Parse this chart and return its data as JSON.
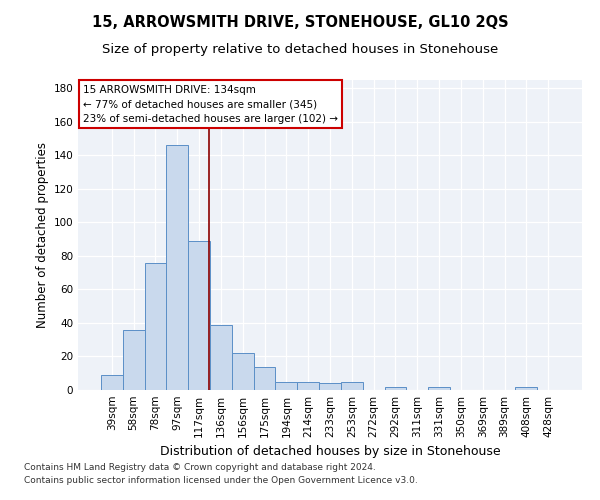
{
  "title1": "15, ARROWSMITH DRIVE, STONEHOUSE, GL10 2QS",
  "title2": "Size of property relative to detached houses in Stonehouse",
  "xlabel": "Distribution of detached houses by size in Stonehouse",
  "ylabel": "Number of detached properties",
  "categories": [
    "39sqm",
    "58sqm",
    "78sqm",
    "97sqm",
    "117sqm",
    "136sqm",
    "156sqm",
    "175sqm",
    "194sqm",
    "214sqm",
    "233sqm",
    "253sqm",
    "272sqm",
    "292sqm",
    "311sqm",
    "331sqm",
    "350sqm",
    "369sqm",
    "389sqm",
    "408sqm",
    "428sqm"
  ],
  "values": [
    9,
    36,
    76,
    146,
    89,
    39,
    22,
    14,
    5,
    5,
    4,
    5,
    0,
    2,
    0,
    2,
    0,
    0,
    0,
    2,
    0
  ],
  "bar_color": "#c9d9ed",
  "bar_edge_color": "#5b8fc7",
  "vline_color": "#8b0000",
  "vline_position": 4.45,
  "annotation_text": "15 ARROWSMITH DRIVE: 134sqm\n← 77% of detached houses are smaller (345)\n23% of semi-detached houses are larger (102) →",
  "annotation_box_edge": "#cc0000",
  "ylim": [
    0,
    185
  ],
  "yticks": [
    0,
    20,
    40,
    60,
    80,
    100,
    120,
    140,
    160,
    180
  ],
  "footnote1": "Contains HM Land Registry data © Crown copyright and database right 2024.",
  "footnote2": "Contains public sector information licensed under the Open Government Licence v3.0.",
  "bg_color": "#eef2f8",
  "title1_fontsize": 10.5,
  "title2_fontsize": 9.5,
  "xlabel_fontsize": 9,
  "ylabel_fontsize": 8.5,
  "tick_fontsize": 7.5,
  "annot_fontsize": 7.5,
  "footnote_fontsize": 6.5
}
